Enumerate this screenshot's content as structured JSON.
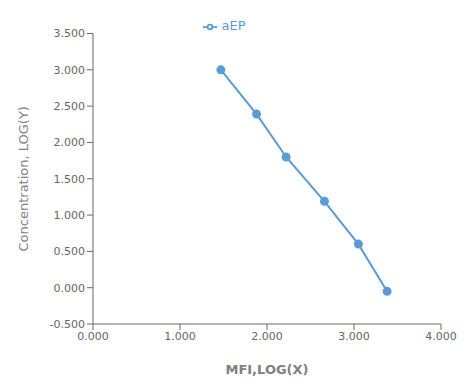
{
  "chart_data": {
    "type": "line",
    "x": [
      1.47,
      1.88,
      2.22,
      2.66,
      3.05,
      3.38
    ],
    "series": [
      {
        "name": "aEP",
        "color": "#5B9BD5",
        "marker": "circle",
        "values": [
          3.0,
          2.39,
          1.8,
          1.19,
          0.6,
          -0.05
        ]
      }
    ],
    "xlabel": "MFI,LOG(X)",
    "ylabel": "Concentration, LOG(Y)",
    "xlim": [
      0.0,
      4.0
    ],
    "ylim": [
      -0.5,
      3.5
    ],
    "xticks": [
      {
        "value": 0.0,
        "label": "0.000"
      },
      {
        "value": 1.0,
        "label": "1.000"
      },
      {
        "value": 2.0,
        "label": "2.000"
      },
      {
        "value": 3.0,
        "label": "3.000"
      },
      {
        "value": 4.0,
        "label": "4.000"
      }
    ],
    "yticks": [
      {
        "value": -0.5,
        "label": "-0.500"
      },
      {
        "value": 0.0,
        "label": "0.000"
      },
      {
        "value": 0.5,
        "label": "0.500"
      },
      {
        "value": 1.0,
        "label": "1.000"
      },
      {
        "value": 1.5,
        "label": "1.500"
      },
      {
        "value": 2.0,
        "label": "2.000"
      },
      {
        "value": 2.5,
        "label": "2.500"
      },
      {
        "value": 3.0,
        "label": "3.000"
      },
      {
        "value": 3.5,
        "label": "3.500"
      }
    ],
    "grid": false,
    "legend": "top"
  }
}
